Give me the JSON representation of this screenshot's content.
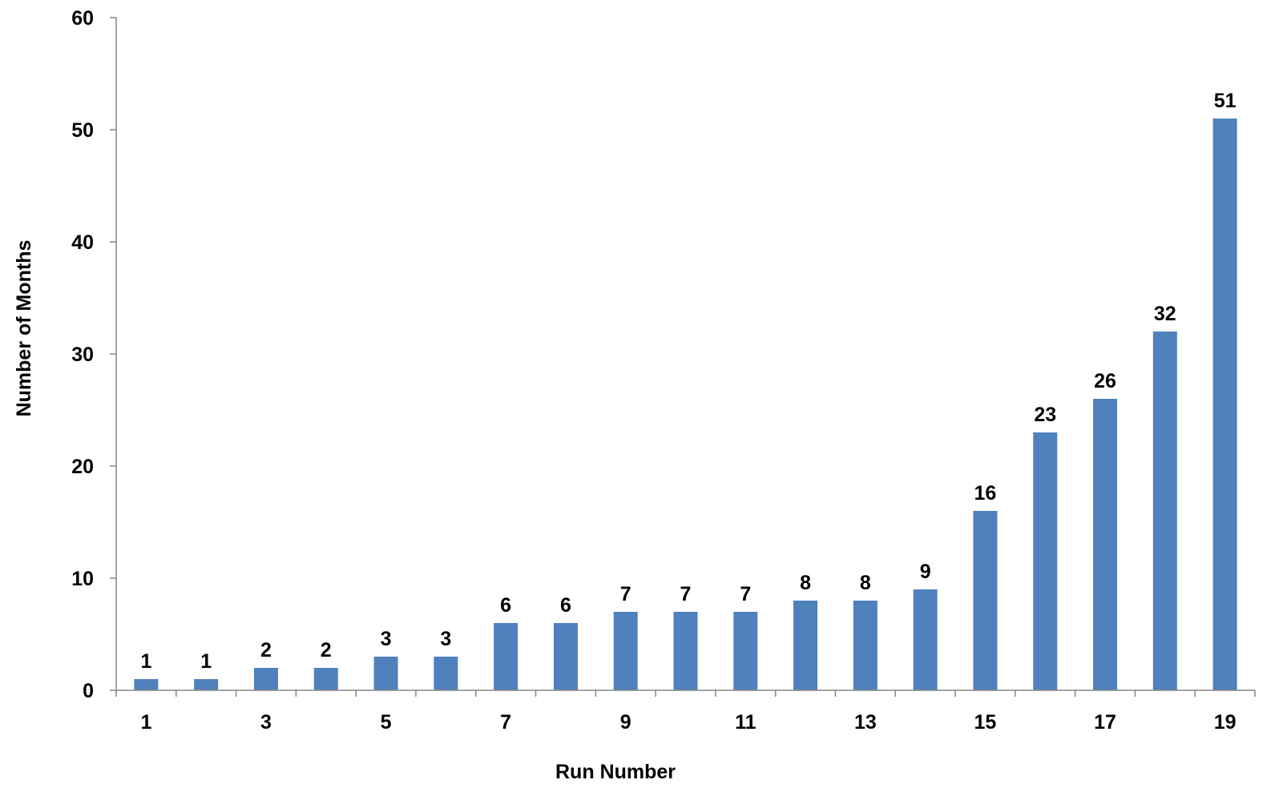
{
  "chart_data": {
    "type": "bar",
    "categories": [
      "1",
      "2",
      "3",
      "4",
      "5",
      "6",
      "7",
      "8",
      "9",
      "10",
      "11",
      "12",
      "13",
      "14",
      "15",
      "16",
      "17",
      "18",
      "19"
    ],
    "x_tick_labels": [
      "1",
      "",
      "3",
      "",
      "5",
      "",
      "7",
      "",
      "9",
      "",
      "11",
      "",
      "13",
      "",
      "15",
      "",
      "17",
      "",
      "19"
    ],
    "values": [
      1,
      1,
      2,
      2,
      3,
      3,
      6,
      6,
      7,
      7,
      7,
      8,
      8,
      9,
      16,
      23,
      26,
      32,
      51
    ],
    "data_labels": [
      "1",
      "1",
      "2",
      "2",
      "3",
      "3",
      "6",
      "6",
      "7",
      "7",
      "7",
      "8",
      "8",
      "9",
      "16",
      "23",
      "26",
      "32",
      "51"
    ],
    "title": "",
    "xlabel": "Run Number",
    "ylabel": "Number of Months",
    "ylim": [
      0,
      60
    ],
    "y_ticks": [
      "0",
      "10",
      "20",
      "30",
      "40",
      "50",
      "60"
    ],
    "grid": false,
    "legend": "none",
    "bar_color": "#4F81BD",
    "axis_color": "#868686"
  }
}
